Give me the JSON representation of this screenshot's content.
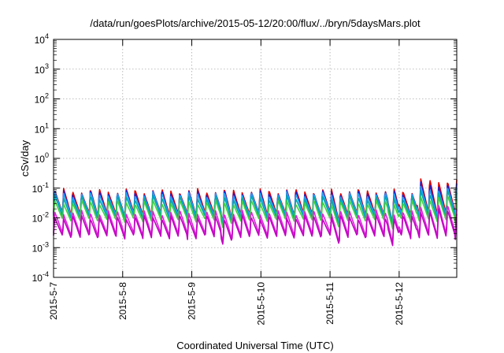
{
  "chart_data": {
    "type": "line",
    "title": "/data/run/goesPlots/archive/2015-05-12/20:00/flux/../bryn/5daysMars.plot",
    "xlabel": "Coordinated Universal Time (UTC)",
    "ylabel": "cSv/day",
    "x_ticks": [
      "2015-5-7",
      "2015-5-8",
      "2015-5-9",
      "2015-5-10",
      "2015-5-11",
      "2015-5-12"
    ],
    "x_range": [
      "2015-05-07T00:00",
      "2015-05-12T20:00"
    ],
    "y_scale": "log",
    "ylim": [
      0.0001,
      10000
    ],
    "y_ticks": [
      {
        "base": "10",
        "exp": "-4"
      },
      {
        "base": "10",
        "exp": "-3"
      },
      {
        "base": "10",
        "exp": "-2"
      },
      {
        "base": "10",
        "exp": "-1"
      },
      {
        "base": "10",
        "exp": "0"
      },
      {
        "base": "10",
        "exp": "1"
      },
      {
        "base": "10",
        "exp": "2"
      },
      {
        "base": "10",
        "exp": "3"
      },
      {
        "base": "10",
        "exp": "4"
      }
    ],
    "grid": true,
    "legend": "none",
    "peak_period_hours": 3.1,
    "series": [
      {
        "color": "#e00000",
        "peak": 0.085,
        "trough": 0.013,
        "late_peak": 0.19
      },
      {
        "color": "#2020c8",
        "peak": 0.075,
        "trough": 0.011,
        "late_peak": 0.14
      },
      {
        "color": "#20a0ff",
        "peak": 0.065,
        "trough": 0.012,
        "late_peak": 0.1
      },
      {
        "color": "#00a8a8",
        "peak": 0.05,
        "trough": 0.01,
        "late_peak": 0.075
      },
      {
        "color": "#40d040",
        "peak": 0.035,
        "trough": 0.008,
        "late_peak": 0.05
      },
      {
        "color": "#e020e0",
        "peak": 0.016,
        "trough": 0.0027,
        "late_peak": 0.025
      },
      {
        "color": "#c000c0",
        "peak": 0.011,
        "trough": 0.0022,
        "late_peak": 0.018
      }
    ]
  }
}
